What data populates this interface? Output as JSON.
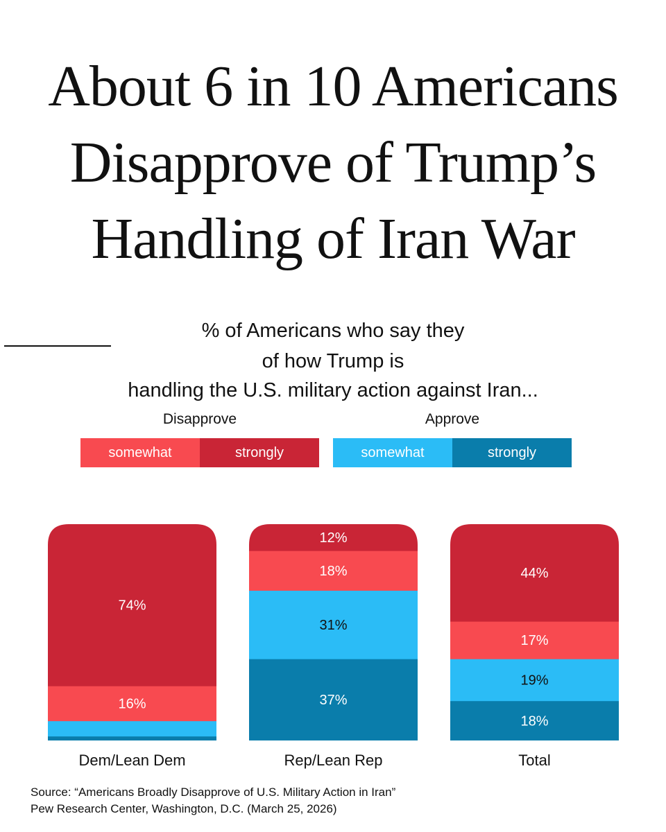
{
  "title_lines": [
    "About 6 in 10 Americans",
    "Disapprove of Trump’s",
    "Handling of Iran War"
  ],
  "subtitle": {
    "line1_before": "% of Americans who say they",
    "line1_after": "of how Trump is",
    "line2": "handling the U.S. military action against Iran..."
  },
  "legend": {
    "disapprove": {
      "heading": "Disapprove",
      "items": [
        {
          "label": "somewhat",
          "color": "#f84a50"
        },
        {
          "label": "strongly",
          "color": "#c92536"
        }
      ]
    },
    "approve": {
      "heading": "Approve",
      "items": [
        {
          "label": "somewhat",
          "color": "#2bbcf6"
        },
        {
          "label": "strongly",
          "color": "#0a7dab"
        }
      ]
    }
  },
  "chart_data": {
    "type": "bar",
    "stacked": true,
    "categories": [
      "Dem/Lean Dem",
      "Rep/Lean Rep",
      "Total"
    ],
    "series": [
      {
        "name": "Approve strongly",
        "color": "#0a7dab",
        "values": [
          2,
          37,
          18
        ],
        "labels": [
          "",
          "37%",
          "18%"
        ]
      },
      {
        "name": "Approve somewhat",
        "color": "#2bbcf6",
        "values": [
          7,
          31,
          19
        ],
        "labels": [
          "",
          "31%",
          "19%"
        ]
      },
      {
        "name": "Disapprove somewhat",
        "color": "#f84a50",
        "values": [
          16,
          18,
          17
        ],
        "labels": [
          "16%",
          "18%",
          "17%"
        ]
      },
      {
        "name": "Disapprove strongly",
        "color": "#c92536",
        "values": [
          74,
          12,
          44
        ],
        "labels": [
          "74%",
          "12%",
          "44%"
        ]
      }
    ]
  },
  "source": {
    "line1": "Source: “Americans Broadly Disapprove of U.S. Military Action in Iran”",
    "line2": "Pew Research Center, Washington, D.C. (March 25, 2026)"
  }
}
